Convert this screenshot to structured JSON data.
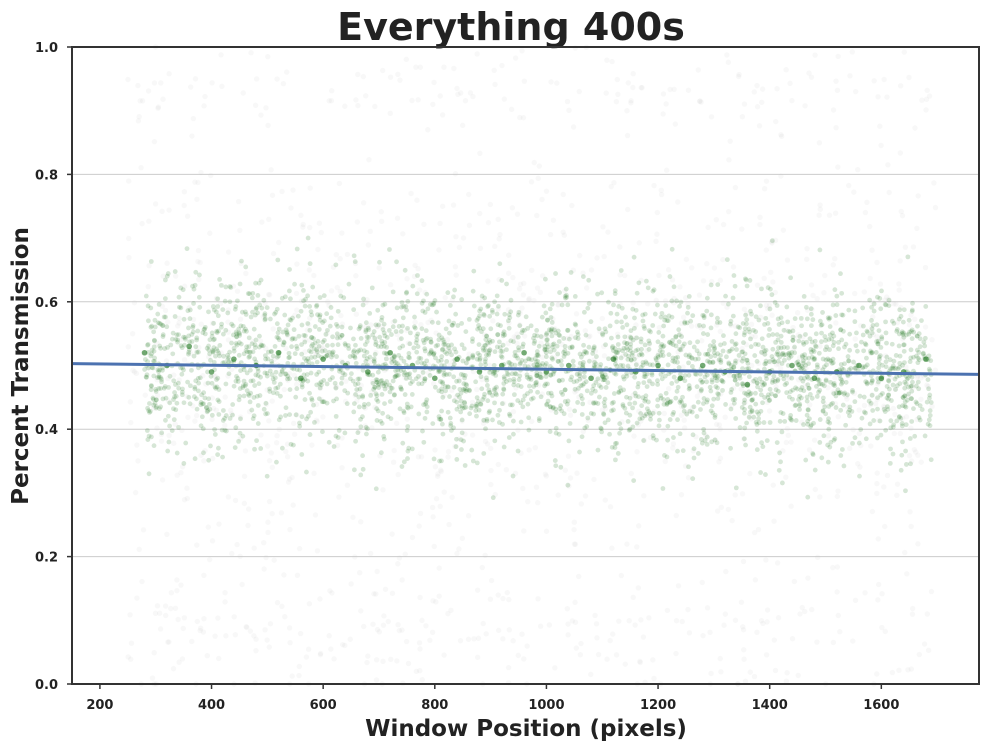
{
  "chart_data": {
    "type": "scatter",
    "title": "Everything 400s",
    "xlabel": "Window Position (pixels)",
    "ylabel": "Percent Transmission",
    "xlim": [
      150,
      1775
    ],
    "ylim": [
      0.0,
      1.0
    ],
    "x_ticks": [
      200,
      400,
      600,
      800,
      1000,
      1200,
      1400,
      1600
    ],
    "x_tick_labels": [
      "200",
      "400",
      "600",
      "800",
      "1000",
      "1200",
      "1400",
      "1600"
    ],
    "y_ticks": [
      0.0,
      0.2,
      0.4,
      0.6,
      0.8,
      1.0
    ],
    "y_tick_labels": [
      "0.0",
      "0.2",
      "0.4",
      "0.6",
      "0.8",
      "1.0"
    ],
    "grid": "horizontal",
    "colors": {
      "points": "#006400",
      "faint_points": "#c8c8c8",
      "regression_line": "#4c72b0",
      "grid": "#cccccc",
      "frame": "#333333"
    },
    "series": [
      {
        "kind": "scatter_core",
        "description_points": [
          [
            280,
            0.52
          ],
          [
            320,
            0.5
          ],
          [
            360,
            0.53
          ],
          [
            400,
            0.49
          ],
          [
            440,
            0.51
          ],
          [
            480,
            0.5
          ],
          [
            520,
            0.52
          ],
          [
            560,
            0.48
          ],
          [
            600,
            0.51
          ],
          [
            640,
            0.5
          ],
          [
            680,
            0.49
          ],
          [
            720,
            0.52
          ],
          [
            760,
            0.5
          ],
          [
            800,
            0.48
          ],
          [
            840,
            0.51
          ],
          [
            880,
            0.49
          ],
          [
            920,
            0.5
          ],
          [
            960,
            0.52
          ],
          [
            1000,
            0.49
          ],
          [
            1040,
            0.5
          ],
          [
            1080,
            0.48
          ],
          [
            1120,
            0.51
          ],
          [
            1160,
            0.49
          ],
          [
            1200,
            0.5
          ],
          [
            1240,
            0.48
          ],
          [
            1280,
            0.5
          ],
          [
            1320,
            0.49
          ],
          [
            1360,
            0.47
          ],
          [
            1400,
            0.49
          ],
          [
            1440,
            0.5
          ],
          [
            1480,
            0.48
          ],
          [
            1520,
            0.49
          ],
          [
            1560,
            0.5
          ],
          [
            1600,
            0.48
          ],
          [
            1640,
            0.49
          ],
          [
            1680,
            0.51
          ]
        ]
      },
      {
        "kind": "regression_line",
        "x": [
          150,
          1775
        ],
        "y": [
          0.503,
          0.486
        ]
      }
    ]
  }
}
